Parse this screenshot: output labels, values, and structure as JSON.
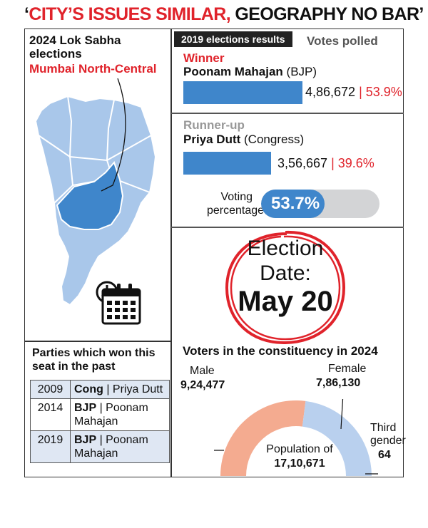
{
  "headline": {
    "open_quote": "‘",
    "part1": "CITY’S ISSUES SIMILAR,",
    "part2": " GEOGRAPHY NO BAR",
    "close_quote": "’"
  },
  "left_panel": {
    "title": "2024 Lok Sabha elections",
    "constituency": "Mumbai North-Central",
    "parties_title": "Parties which won this seat in the past",
    "past_winners": [
      {
        "year": "2009",
        "party": "Cong",
        "sep": " | ",
        "candidate": "Priya Dutt"
      },
      {
        "year": "2014",
        "party": "BJP",
        "sep": " | ",
        "candidate": "Poonam Mahajan"
      },
      {
        "year": "2019",
        "party": "BJP",
        "sep": " | ",
        "candidate": "Poonam Mahajan"
      }
    ]
  },
  "results": {
    "header": "2019 elections results",
    "votes_polled_label": "Votes polled",
    "winner": {
      "label": "Winner",
      "name": "Poonam Mahajan",
      "party": " (BJP)",
      "votes": "4,86,672",
      "sep": " | ",
      "share": "53.9%",
      "share_value": 53.9
    },
    "runner_up": {
      "label": "Runner-up",
      "name": "Priya Dutt",
      "party": " (Congress)",
      "votes": "3,56,667",
      "sep": " | ",
      "share": "39.6%",
      "share_value": 39.6
    },
    "voting_percentage": {
      "label": "Voting percentage",
      "value": "53.7%",
      "value_num": 53.7
    }
  },
  "election_date": {
    "line1": "Election",
    "line2": "Date:",
    "line3": "May 20"
  },
  "voters": {
    "title": "Voters in the constituency in 2024",
    "male_label": "Male",
    "male_value": "9,24,477",
    "female_label": "Female",
    "female_value": "7,86,130",
    "third_label_1": "Third",
    "third_label_2": "gender",
    "third_value": "64",
    "population_label": "Population of",
    "population_value": "17,10,671",
    "male_count": 924477,
    "female_count": 786130,
    "third_count": 64
  },
  "colors": {
    "accent_red": "#e0232b",
    "bar_blue": "#3f86cb",
    "map_blue": "#a9c7ea",
    "map_highlight": "#3f86cb",
    "male_arc": "#f4ab90",
    "female_arc": "#b9d0ee"
  },
  "icons": [
    "map-icon",
    "calendar-clock-icon"
  ]
}
